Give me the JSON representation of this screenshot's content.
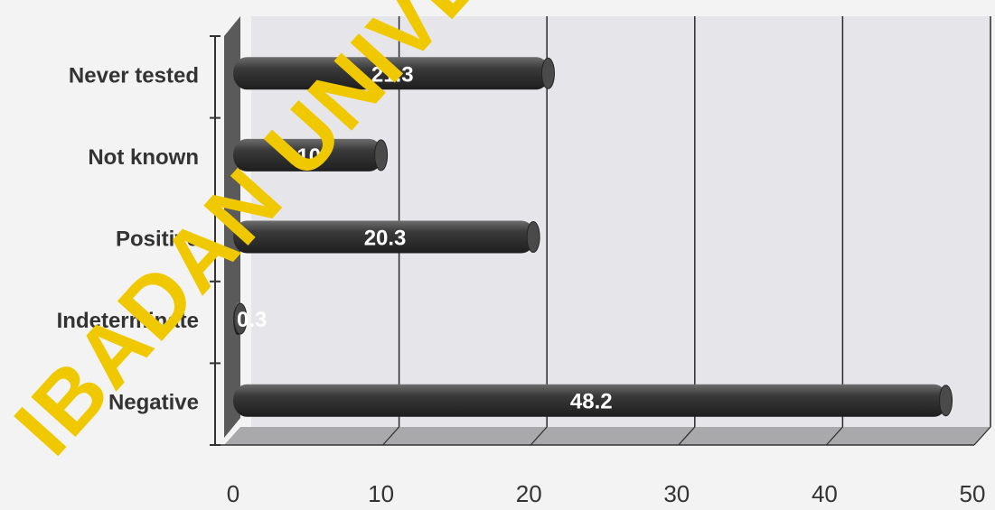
{
  "chart_data": {
    "type": "bar",
    "orientation": "horizontal",
    "categories": [
      "Never tested",
      "Not known",
      "Positive",
      "Indeterminate",
      "Negative"
    ],
    "values": [
      21.3,
      10,
      20.3,
      0.3,
      48.2
    ],
    "value_labels": [
      "21.3",
      "10",
      "20.3",
      "0.3",
      "48.2"
    ],
    "xlim": [
      0,
      50
    ],
    "x_ticks": [
      "0",
      "10",
      "20",
      "30",
      "40",
      "50"
    ],
    "grid": true,
    "style": "3d-cylinder",
    "colors": {
      "bar": "#3a3a3a",
      "bar_highlight": "#6d6d6d",
      "data_label": "#ffffff",
      "plot_back": "#e6e6ea",
      "floor": "#a9a9ac",
      "wall_side": "#5a5a5a",
      "gridline": "#2b2b2b",
      "axis": "#333333"
    },
    "watermark": {
      "text": "IBADAN UNIVERSITY",
      "color": "#f0c800"
    }
  }
}
